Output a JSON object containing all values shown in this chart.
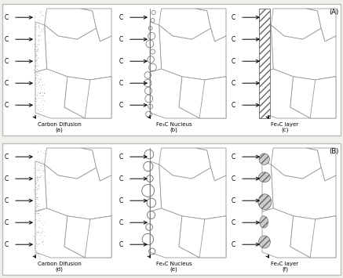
{
  "bg_color": "#f0f0eb",
  "white": "#ffffff",
  "grain_edge": "#999999",
  "border_color": "#bbbbbb",
  "text_color": "#111111",
  "dot_color": "#777777",
  "hatch_color": "#aaaaaa",
  "row_A_label": "(A)",
  "row_B_label": "(B)",
  "panels": [
    {
      "label": "Carbon Difusion",
      "sub": "(a)"
    },
    {
      "label": "Fe₃C Nucleus",
      "sub": "(b)"
    },
    {
      "label": "Fe₃C layer",
      "sub": "(c)"
    },
    {
      "label": "Carbon Difusion",
      "sub": "(d)"
    },
    {
      "label": "Fe₃C Nucleus",
      "sub": "(e)"
    },
    {
      "label": "Fe₃C layer",
      "sub": "(f)"
    }
  ],
  "C_text": "C",
  "n_C_labels": 5
}
